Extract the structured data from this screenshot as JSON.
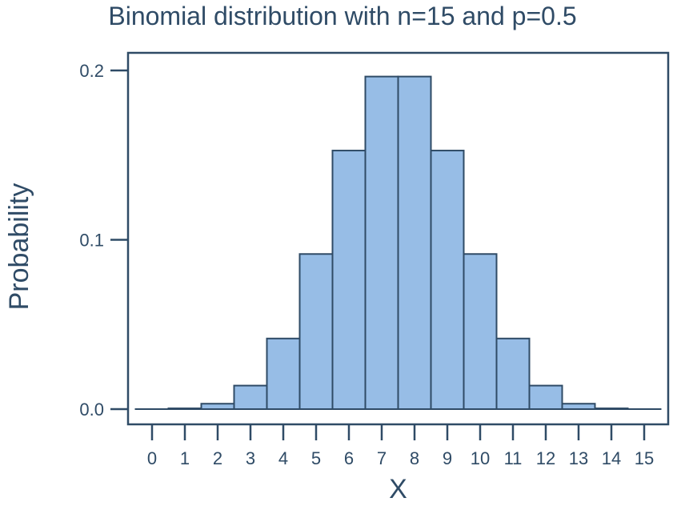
{
  "chart_data": {
    "type": "bar",
    "title": "Binomial distribution with n=15 and p=0.5",
    "xlabel": "X",
    "ylabel": "Probability",
    "categories": [
      "0",
      "1",
      "2",
      "3",
      "4",
      "5",
      "6",
      "7",
      "8",
      "9",
      "10",
      "11",
      "12",
      "13",
      "14",
      "15"
    ],
    "values": [
      3e-05,
      0.00046,
      0.0032,
      0.0139,
      0.0417,
      0.0916,
      0.1527,
      0.1964,
      0.1964,
      0.1527,
      0.0916,
      0.0417,
      0.0139,
      0.0032,
      0.00046,
      3e-05
    ],
    "yticks": [
      "0.0",
      "0.1",
      "0.2"
    ],
    "ytick_values": [
      0.0,
      0.1,
      0.2
    ],
    "ylim": [
      -0.0075,
      0.2
    ],
    "grid": false,
    "legend": "none",
    "bar_color": "#97bde6",
    "edge_color": "#2f4b66"
  }
}
